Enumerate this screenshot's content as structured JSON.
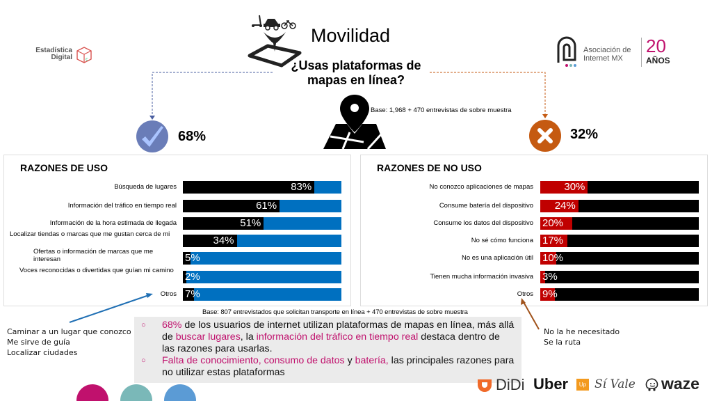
{
  "header": {
    "title": "Movilidad",
    "question": "¿Usas plataformas de mapas en línea?",
    "base_note": "Base: 1,968 + 470 entrevistas de sobre muestra"
  },
  "logos": {
    "left": {
      "line1": "Estadística",
      "line2": "Digital"
    },
    "right": {
      "line1": "Asociación de",
      "line2": "Internet MX",
      "years": "20",
      "years_label": "AÑOS"
    }
  },
  "answers": {
    "yes": {
      "value": "68%",
      "icon": "check-icon",
      "color": "#6a7db8"
    },
    "no": {
      "value": "32%",
      "icon": "x-icon",
      "color": "#c55a11"
    }
  },
  "colors": {
    "use_fill": "#000000",
    "use_track": "#0070c0",
    "nouse_fill": "#c00000",
    "nouse_track": "#000000",
    "highlight": "#c0116d",
    "dots": [
      "#c0116d",
      "#7ab8b8",
      "#5b9bd5"
    ]
  },
  "chart_data": [
    {
      "type": "bar",
      "orientation": "horizontal",
      "stacked_to": 100,
      "title": "RAZONES DE USO",
      "categories": [
        "Búsqueda de lugares",
        "Información del tráfico en tiempo real",
        "Información de la hora estimada de llegada",
        "Localizar tiendas o marcas que me gustan cerca de mi",
        "Ofertas o información de marcas que me interesan",
        "Voces reconocidas o divertidas que guían mi camino",
        "Otros"
      ],
      "values": [
        83,
        61,
        51,
        34,
        5,
        2,
        7
      ],
      "labels": [
        "83%",
        "61%",
        "51%",
        "34%",
        "5%",
        "2%",
        "7%"
      ],
      "xlim": [
        0,
        100
      ]
    },
    {
      "type": "bar",
      "orientation": "horizontal",
      "stacked_to": 100,
      "title": "RAZONES DE NO USO",
      "categories": [
        "No conozco aplicaciones de mapas",
        "Consume batería del dispositivo",
        "Consume los datos del dispositivo",
        "No sé cómo funciona",
        "No es una aplicación útil",
        "Tienen mucha información invasiva",
        "Otros"
      ],
      "values": [
        30,
        24,
        20,
        17,
        10,
        3,
        9
      ],
      "labels": [
        "30%",
        "24%",
        "20%",
        "17%",
        "10%",
        "3%",
        "9%"
      ],
      "xlim": [
        0,
        100
      ]
    }
  ],
  "base_bottom": "Base: 807 entrevistados que solicitan transporte en línea + 470 entrevistas de sobre muestra",
  "notes_left": [
    "Caminar a un lugar que conozco",
    "Me sirve de guía",
    "Localizar ciudades"
  ],
  "notes_right": [
    "No la he necesitado",
    "Se la ruta"
  ],
  "summary": {
    "item1": {
      "p1": "68%",
      "p2": " de los usuarios de internet utilizan plataformas de mapas en línea, más allá de ",
      "p3": "buscar lugares",
      "p4": ", la ",
      "p5": "información del tráfico en tiempo real",
      "p6": " destaca dentro de las razones para usarlas."
    },
    "item2": {
      "p1": "Falta de conocimiento, consumo de datos",
      "p2": " y ",
      "p3": "batería,",
      "p4": " las principales razones para no utilizar estas plataformas"
    },
    "bullet": "○"
  },
  "brands": [
    "DiDi",
    "Uber",
    "Up",
    "Sí Vale",
    "waze"
  ]
}
